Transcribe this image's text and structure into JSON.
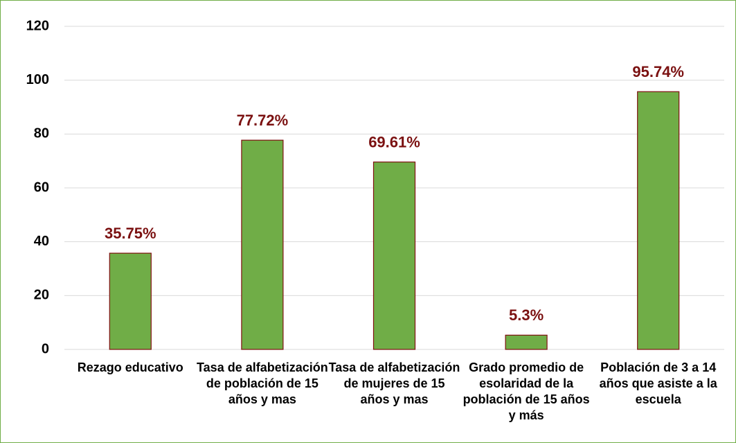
{
  "chart_data": {
    "type": "bar",
    "categories": [
      "Rezago educativo",
      "Tasa de alfabetización de población de 15 años y mas",
      "Tasa de alfabetización de mujeres de 15 años y mas",
      "Grado promedio de esolaridad de la población de 15 años y más",
      "Población de 3 a 14 años que asiste a la escuela"
    ],
    "values": [
      35.75,
      77.72,
      69.61,
      5.3,
      95.74
    ],
    "value_labels": [
      "35.75%",
      "77.72%",
      "69.61%",
      "5.3%",
      "95.74%"
    ],
    "color": "#70ad47",
    "edge_color": "#7f1010",
    "label_color": "#7b1111",
    "ylim": [
      0,
      120
    ],
    "yticks": [
      0,
      20,
      40,
      60,
      80,
      100,
      120
    ],
    "grid": true
  }
}
